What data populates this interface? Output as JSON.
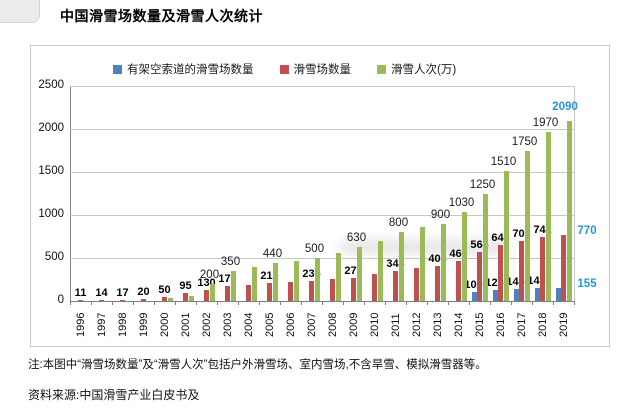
{
  "title": "中国滑雪场数量及滑雪人次统计",
  "note": "注:本图中“滑雪场数量”及“滑雪人次”包括户外滑雪场、室内雪场,不含旱雪、模拟滑雪器等。",
  "source": "资料来源:中国滑雪产业白皮书及",
  "chart_data": {
    "type": "bar",
    "title": "中国滑雪场数量及滑雪人次统计",
    "categories": [
      "1996",
      "1997",
      "1998",
      "1999",
      "2000",
      "2001",
      "2002",
      "2003",
      "2004",
      "2005",
      "2006",
      "2007",
      "2008",
      "2009",
      "2010",
      "2011",
      "2012",
      "2013",
      "2014",
      "2015",
      "2016",
      "2017",
      "2018",
      "2019"
    ],
    "ylim": [
      0,
      2500
    ],
    "yticks": [
      0,
      500,
      1000,
      1500,
      2000,
      2500
    ],
    "grid": true,
    "legend_position": "top",
    "highlight_last_color": "#2396D3",
    "axis_color": "#7f7f7f",
    "grid_color": "#c8c8c8",
    "series": [
      {
        "name": "有架空索道的滑雪场数量",
        "color": "#4F81BD",
        "values": [
          null,
          null,
          null,
          null,
          null,
          null,
          null,
          null,
          null,
          null,
          null,
          null,
          null,
          null,
          null,
          null,
          null,
          null,
          null,
          109,
          125,
          145,
          149,
          155
        ],
        "labels": [
          null,
          null,
          null,
          null,
          null,
          null,
          null,
          null,
          null,
          null,
          null,
          null,
          null,
          null,
          null,
          null,
          null,
          null,
          null,
          "109",
          "125",
          "145",
          "149",
          "155"
        ]
      },
      {
        "name": "滑雪场数量",
        "color": "#C0504D",
        "values": [
          11,
          14,
          17,
          20,
          50,
          95,
          130,
          170,
          190,
          210,
          222,
          235,
          252,
          270,
          310,
          348,
          380,
          408,
          460,
          568,
          646,
          703,
          742,
          770
        ],
        "labels": [
          "11",
          "14",
          "17",
          "20",
          "50",
          "95",
          "130",
          "170",
          null,
          "210",
          null,
          "235",
          null,
          "270",
          null,
          "348",
          null,
          "408",
          "460",
          "568",
          "646",
          "703",
          "742",
          "770"
        ]
      },
      {
        "name": "滑雪人次(万)",
        "color": "#9BBB59",
        "values": [
          null,
          null,
          null,
          null,
          30,
          60,
          200,
          350,
          400,
          440,
          470,
          500,
          560,
          630,
          700,
          800,
          855,
          900,
          1030,
          1250,
          1510,
          1750,
          1970,
          2090
        ],
        "labels": [
          null,
          null,
          null,
          null,
          null,
          null,
          "200",
          "350",
          null,
          "440",
          null,
          "500",
          null,
          "630",
          null,
          "800",
          null,
          "900",
          "1030",
          "1250",
          "1510",
          "1750",
          "1970",
          "2090"
        ]
      }
    ]
  }
}
